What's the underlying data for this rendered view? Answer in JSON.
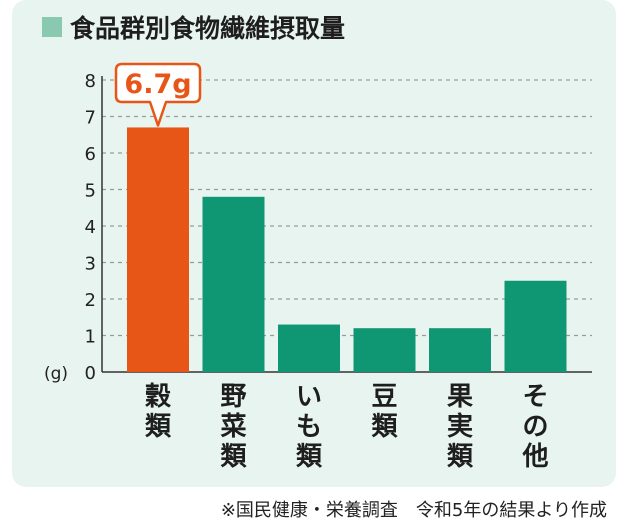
{
  "title": "食品群別食物繊維摂取量",
  "source_note": "※国民健康・栄養調査　令和5年の結果より作成",
  "colors": {
    "accent_bar": "#e85617",
    "bar": "#0f9672",
    "card_bg": "#e8f4ef",
    "title_square": "#88c9b0",
    "grid": "#9a9a9a"
  },
  "chart_data": {
    "type": "bar",
    "title": "食品群別食物繊維摂取量",
    "categories": [
      "穀類",
      "野菜類",
      "いも類",
      "豆類",
      "果実類",
      "その他"
    ],
    "values": [
      6.7,
      4.8,
      1.3,
      1.2,
      1.2,
      2.5
    ],
    "highlight_index": 0,
    "highlight_label": "6.7g",
    "ylabel": "(g)",
    "ylim": [
      0,
      8
    ],
    "yticks": [
      "0",
      "1",
      "2",
      "3",
      "4",
      "5",
      "6",
      "7",
      "8"
    ],
    "grid": "dashed horizontal",
    "legend": "none"
  }
}
